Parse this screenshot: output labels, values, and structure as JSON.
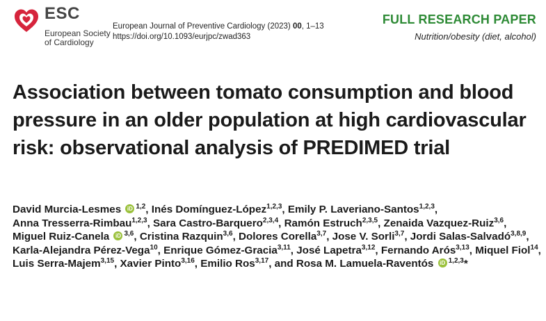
{
  "header": {
    "logo": {
      "icon": "esc-heart-logo-icon",
      "wordmark": "ESC",
      "society_line1": "European Society",
      "society_line2": "of Cardiology",
      "color": "#d6243c"
    },
    "journal_name": "European Journal of Preventive Cardiology",
    "journal_year": "(2023)",
    "journal_volume": "00",
    "journal_pages": ", 1–13",
    "doi": "https://doi.org/10.1093/eurjpc/zwad363",
    "paper_type": "FULL RESEARCH PAPER",
    "subject": "Nutrition/obesity (diet, alcohol)",
    "accent_color": "#2d8a35"
  },
  "title": "Association between tomato consumption and blood pressure in an older population at high cardiovascular risk: observational analysis of PREDIMED trial",
  "authors": [
    {
      "name": "David Murcia-Lesmes",
      "orcid": true,
      "affil": "1,2"
    },
    {
      "name": "Inés Domínguez-López",
      "orcid": false,
      "affil": "1,2,3"
    },
    {
      "name": "Emily P. Laveriano-Santos",
      "orcid": false,
      "affil": "1,2,3"
    },
    {
      "name": "Anna Tresserra-Rimbau",
      "orcid": false,
      "affil": "1,2,3"
    },
    {
      "name": "Sara Castro-Barquero",
      "orcid": false,
      "affil": "2,3,4"
    },
    {
      "name": "Ramón Estruch",
      "orcid": false,
      "affil": "2,3,5"
    },
    {
      "name": "Zenaida Vazquez-Ruiz",
      "orcid": false,
      "affil": "3,6"
    },
    {
      "name": "Miguel Ruiz-Canela",
      "orcid": true,
      "affil": "3,6"
    },
    {
      "name": "Cristina Razquin",
      "orcid": false,
      "affil": "3,6"
    },
    {
      "name": "Dolores Corella",
      "orcid": false,
      "affil": "3,7"
    },
    {
      "name": "Jose V. Sorli",
      "orcid": false,
      "affil": "3,7"
    },
    {
      "name": "Jordi Salas-Salvadó",
      "orcid": false,
      "affil": "3,8,9"
    },
    {
      "name": "Karla-Alejandra Pérez-Vega",
      "orcid": false,
      "affil": "10"
    },
    {
      "name": "Enrique Gómez-Gracia",
      "orcid": false,
      "affil": "3,11"
    },
    {
      "name": "José Lapetra",
      "orcid": false,
      "affil": "3,12"
    },
    {
      "name": "Fernando Arós",
      "orcid": false,
      "affil": "3,13"
    },
    {
      "name": "Miquel Fiol",
      "orcid": false,
      "affil": "14"
    },
    {
      "name": "Luis Serra-Majem",
      "orcid": false,
      "affil": "3,15"
    },
    {
      "name": "Xavier Pinto",
      "orcid": false,
      "affil": "3,16"
    },
    {
      "name": "Emilio Ros",
      "orcid": false,
      "affil": "3,17"
    },
    {
      "name": "Rosa M. Lamuela-Raventós",
      "orcid": true,
      "affil": "1,2,3",
      "corresponding": true
    }
  ],
  "separator": ", ",
  "last_conjunction": "and ",
  "corresponding_mark": "*",
  "orcid_label": "iD",
  "orcid_color": "#9bc13c"
}
